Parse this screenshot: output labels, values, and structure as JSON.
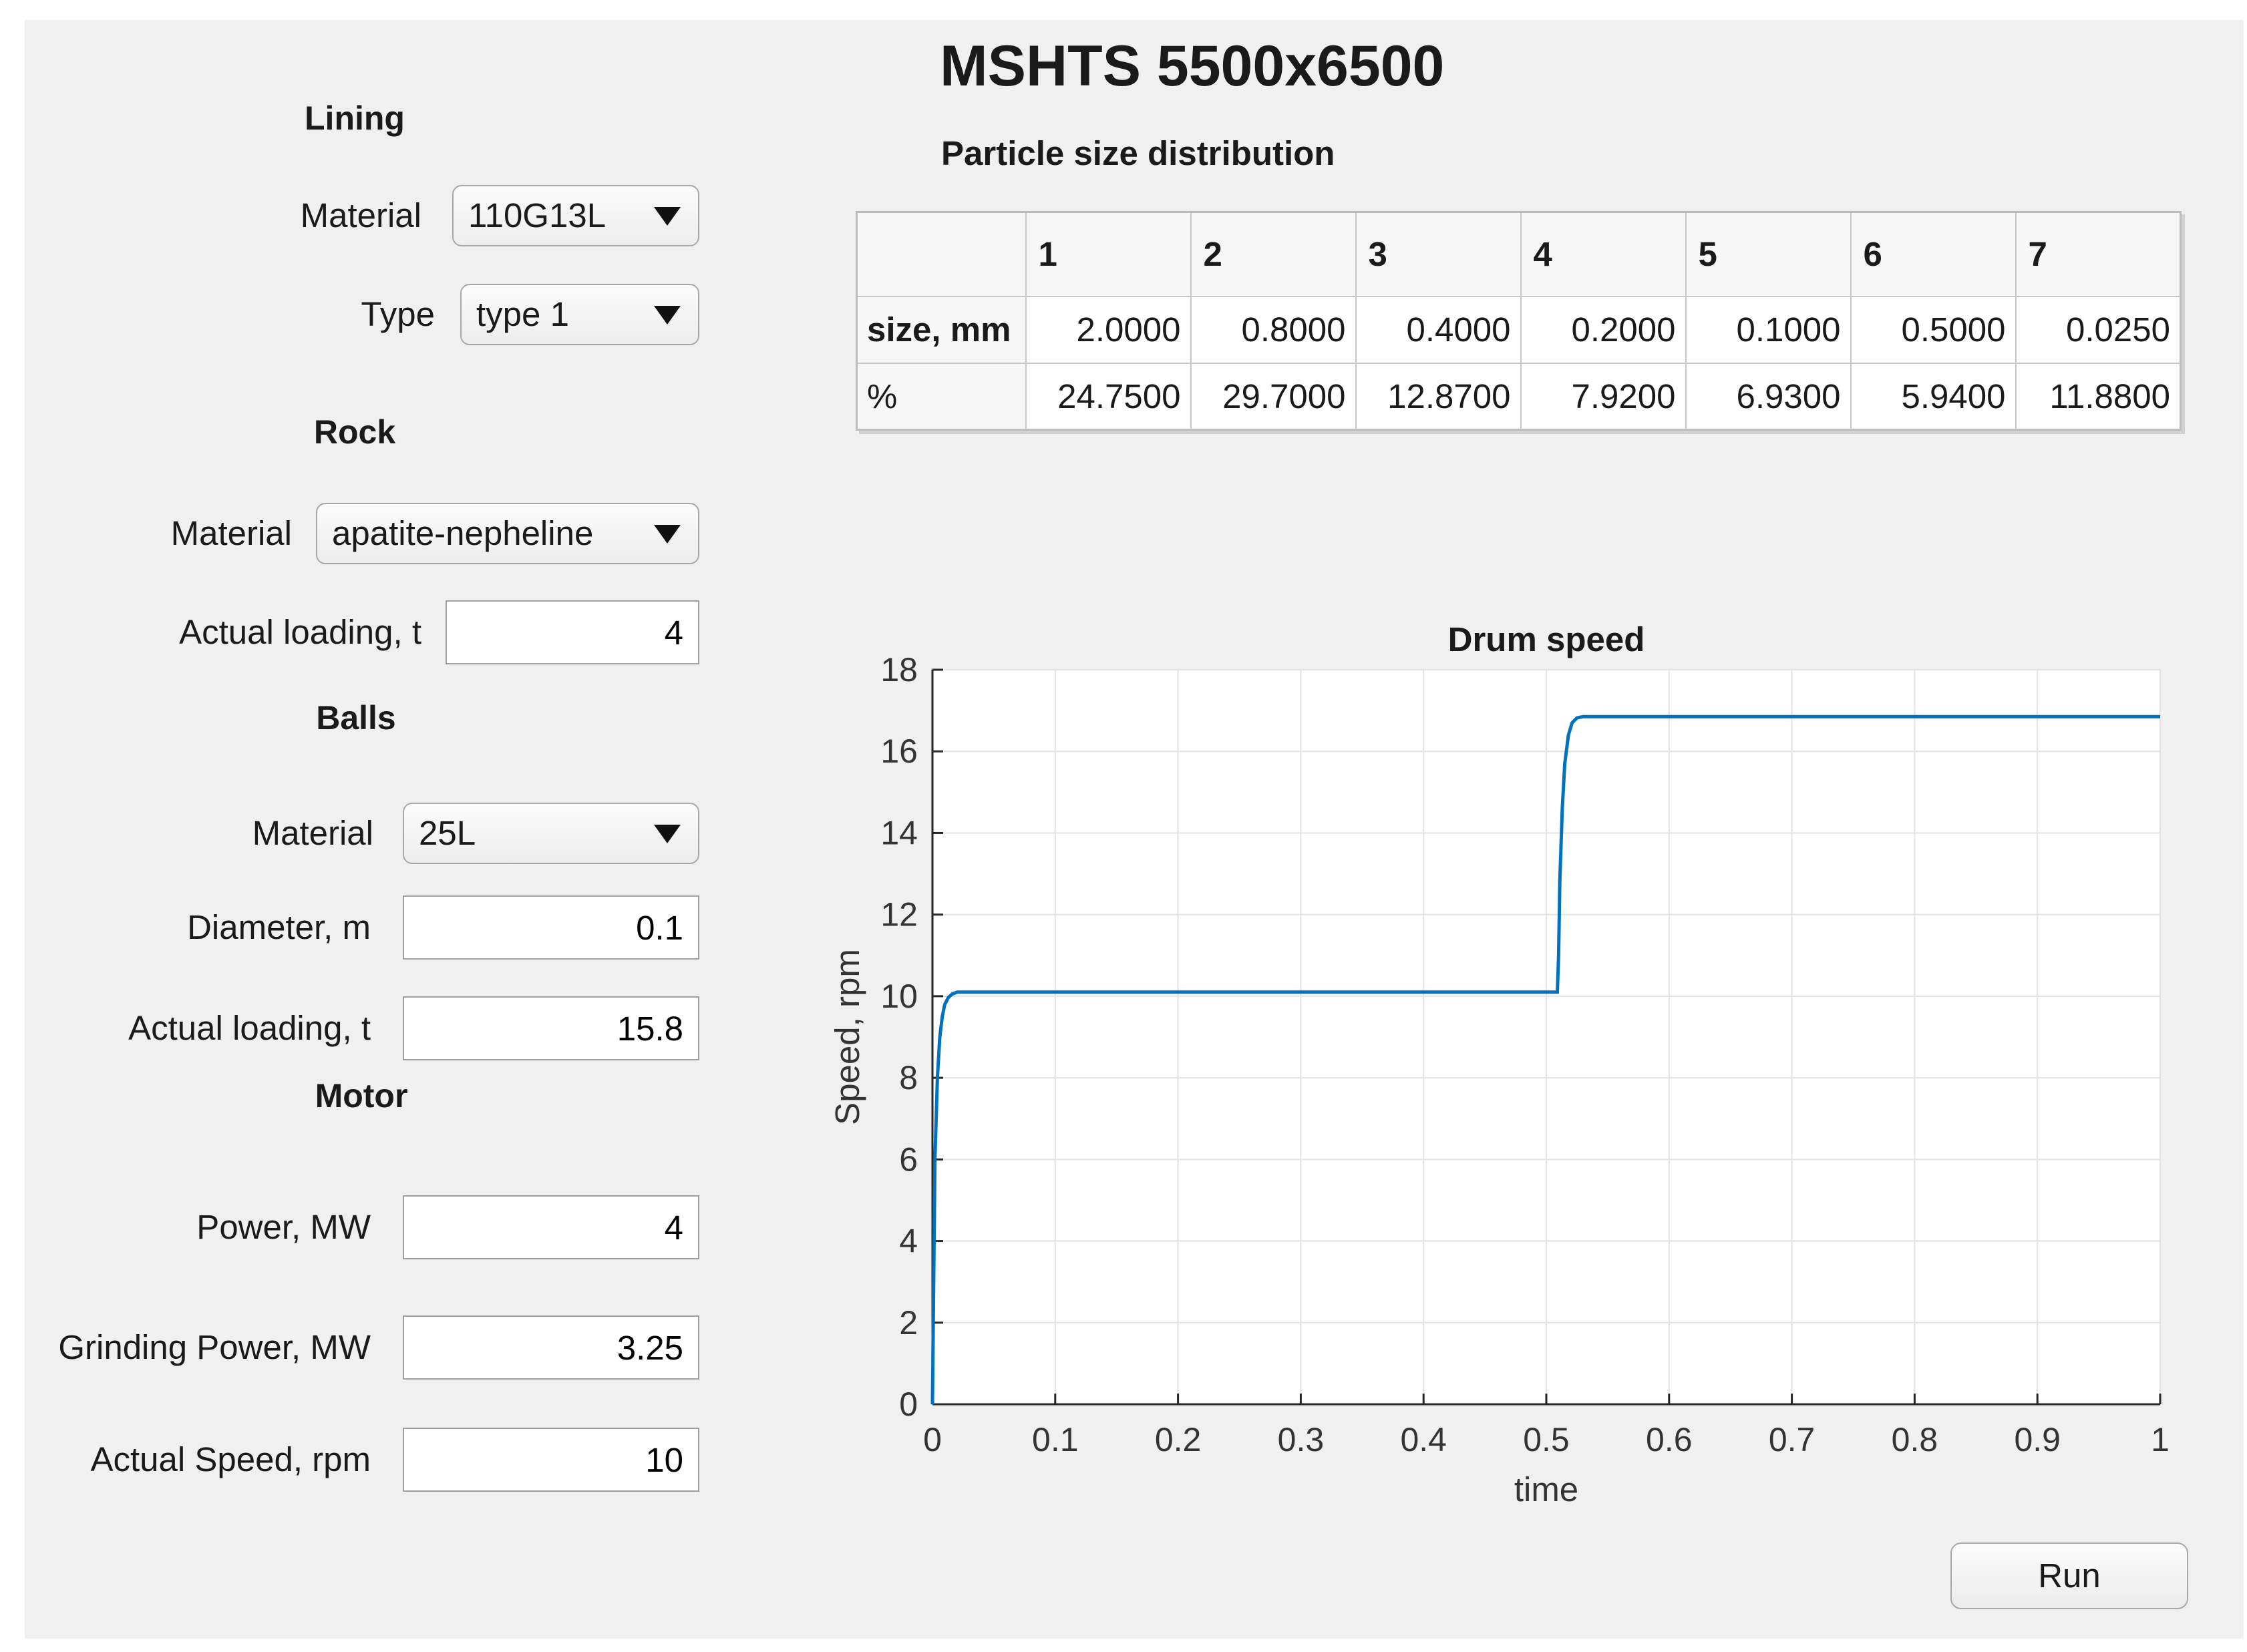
{
  "title": "MSHTS 5500x6500",
  "lining": {
    "heading": "Lining",
    "material_label": "Material",
    "material_value": "110G13L",
    "type_label": "Type",
    "type_value": "type 1"
  },
  "rock": {
    "heading": "Rock",
    "material_label": "Material",
    "material_value": "apatite-nepheline",
    "loading_label": "Actual loading, t",
    "loading_value": "4"
  },
  "balls": {
    "heading": "Balls",
    "material_label": "Material",
    "material_value": "25L",
    "diameter_label": "Diameter, m",
    "diameter_value": "0.1",
    "loading_label": "Actual loading, t",
    "loading_value": "15.8"
  },
  "motor": {
    "heading": "Motor",
    "power_label": "Power, MW",
    "power_value": "4",
    "grinding_label": "Grinding Power, MW",
    "grinding_value": "3.25",
    "speed_label": "Actual Speed, rpm",
    "speed_value": "10"
  },
  "psd": {
    "label": "Particle size distribution",
    "columns": [
      "1",
      "2",
      "3",
      "4",
      "5",
      "6",
      "7"
    ],
    "rows": [
      {
        "header": "size, mm",
        "values": [
          "2.0000",
          "0.8000",
          "0.4000",
          "0.2000",
          "0.1000",
          "0.5000",
          "0.0250"
        ]
      },
      {
        "header": "%",
        "values": [
          "24.7500",
          "29.7000",
          "12.8700",
          "7.9200",
          "6.9300",
          "5.9400",
          "11.8800"
        ]
      }
    ]
  },
  "run_label": "Run",
  "chart_data": {
    "type": "line",
    "title": "Drum speed",
    "xlabel": "time",
    "ylabel": "Speed, rpm",
    "xlim": [
      0,
      1
    ],
    "ylim": [
      0,
      18
    ],
    "xticks": [
      "0",
      "0.1",
      "0.2",
      "0.3",
      "0.4",
      "0.5",
      "0.6",
      "0.7",
      "0.8",
      "0.9",
      "1"
    ],
    "yticks": [
      "0",
      "2",
      "4",
      "6",
      "8",
      "10",
      "12",
      "14",
      "16",
      "18"
    ],
    "grid": true,
    "line_color": "#0072bd",
    "series": [
      {
        "x": [
          0,
          0.002,
          0.004,
          0.006,
          0.008,
          0.01,
          0.013,
          0.016,
          0.02,
          0.025,
          0.03,
          0.1,
          0.2,
          0.3,
          0.4,
          0.5,
          0.509,
          0.51,
          0.511,
          0.513,
          0.515,
          0.518,
          0.521,
          0.525,
          0.53,
          0.54,
          0.6,
          0.7,
          0.8,
          0.9,
          1.0
        ],
        "y": [
          0,
          6.0,
          8.0,
          9.0,
          9.5,
          9.8,
          9.97,
          10.05,
          10.1,
          10.1,
          10.1,
          10.1,
          10.1,
          10.1,
          10.1,
          10.1,
          10.1,
          11.0,
          12.8,
          14.6,
          15.7,
          16.4,
          16.7,
          16.82,
          16.85,
          16.85,
          16.85,
          16.85,
          16.85,
          16.85,
          16.85
        ]
      }
    ]
  }
}
